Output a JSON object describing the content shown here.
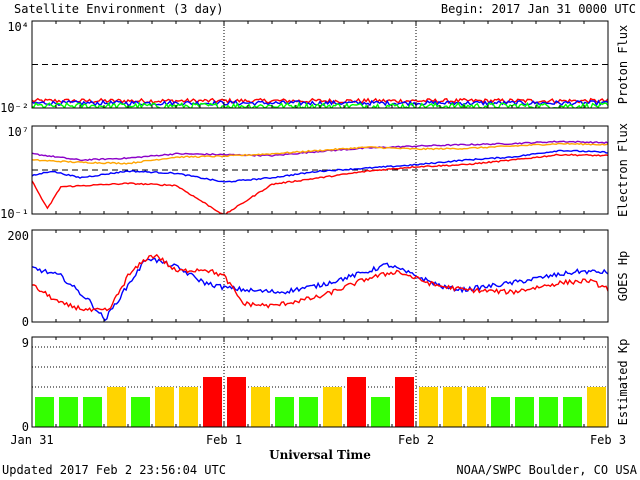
{
  "header": {
    "title": "Satellite Environment (3 day)",
    "begin": "Begin:  2017 Jan 31 0000 UTC"
  },
  "footer": {
    "updated": "Updated 2017 Feb  2 23:56:04 UTC",
    "credit": "NOAA/SWPC Boulder, CO USA"
  },
  "x_axis": {
    "label": "Universal Time",
    "ticks": [
      "Jan 31",
      "Feb 1",
      "Feb 2",
      "Feb 3"
    ]
  },
  "colors": {
    "red": "#ff0000",
    "blue": "#0000ff",
    "green": "#00ff00",
    "orange": "#ffa500",
    "purple": "#8b00c8",
    "yellow": "#ffd700",
    "kp_green": "#33ff00",
    "kp_yellow": "#ffd400",
    "kp_red": "#ff0000"
  },
  "chart_data": [
    {
      "type": "line",
      "panel": "proton",
      "ylabel": "Proton Flux",
      "y_scale": "log",
      "ylim": [
        0.01,
        10000
      ],
      "y_ticks": [
        "10⁴",
        "10⁻²"
      ],
      "threshold": 10,
      "x_days": [
        0,
        3
      ],
      "series": [
        {
          "color": "red",
          "base": 0.031,
          "jitter": 0.15
        },
        {
          "color": "blue",
          "base": 0.022,
          "jitter": 0.15
        },
        {
          "color": "green",
          "base": 0.014,
          "jitter": 0.2
        }
      ]
    },
    {
      "type": "line",
      "panel": "electron",
      "ylabel": "Electron Flux",
      "y_scale": "log",
      "ylim": [
        0.1,
        10000000
      ],
      "y_ticks": [
        "10⁷",
        "10⁻¹"
      ],
      "threshold": 1000,
      "x_days": [
        0,
        3
      ],
      "series": [
        {
          "color": "purple",
          "points": [
            [
              0,
              30000
            ],
            [
              0.25,
              8000
            ],
            [
              0.5,
              12000
            ],
            [
              0.75,
              30000
            ],
            [
              1,
              25000
            ],
            [
              1.25,
              20000
            ],
            [
              1.5,
              50000
            ],
            [
              1.75,
              100000
            ],
            [
              2,
              150000
            ],
            [
              2.25,
              200000
            ],
            [
              2.5,
              250000
            ],
            [
              2.75,
              400000
            ],
            [
              3,
              300000
            ]
          ]
        },
        {
          "color": "orange",
          "points": [
            [
              0,
              8000
            ],
            [
              0.25,
              5000
            ],
            [
              0.5,
              4000
            ],
            [
              0.75,
              15000
            ],
            [
              1,
              18000
            ],
            [
              1.25,
              30000
            ],
            [
              1.5,
              60000
            ],
            [
              1.75,
              120000
            ],
            [
              2,
              80000
            ],
            [
              2.25,
              90000
            ],
            [
              2.5,
              150000
            ],
            [
              2.75,
              250000
            ],
            [
              3,
              200000
            ]
          ]
        },
        {
          "color": "blue",
          "points": [
            [
              0,
              300
            ],
            [
              0.1,
              800
            ],
            [
              0.25,
              200
            ],
            [
              0.5,
              800
            ],
            [
              0.75,
              500
            ],
            [
              1,
              80
            ],
            [
              1.25,
              200
            ],
            [
              1.5,
              800
            ],
            [
              1.75,
              1500
            ],
            [
              2,
              3000
            ],
            [
              2.25,
              8000
            ],
            [
              2.5,
              15000
            ],
            [
              2.75,
              60000
            ],
            [
              3,
              40000
            ]
          ]
        },
        {
          "color": "red",
          "points": [
            [
              0,
              100
            ],
            [
              0.08,
              0.3
            ],
            [
              0.15,
              30
            ],
            [
              0.5,
              60
            ],
            [
              0.75,
              40
            ],
            [
              1,
              0.08
            ],
            [
              1.25,
              50
            ],
            [
              1.5,
              200
            ],
            [
              1.75,
              800
            ],
            [
              2,
              2000
            ],
            [
              2.25,
              3000
            ],
            [
              2.5,
              8000
            ],
            [
              2.75,
              25000
            ],
            [
              3,
              20000
            ]
          ]
        }
      ]
    },
    {
      "type": "line",
      "panel": "goes_hp",
      "ylabel": "GOES Hp",
      "y_scale": "linear",
      "ylim": [
        0,
        200
      ],
      "y_ticks": [
        "200",
        "0"
      ],
      "x_days": [
        0,
        3
      ],
      "series": [
        {
          "color": "blue",
          "points": [
            [
              0,
              118
            ],
            [
              0.15,
              100
            ],
            [
              0.3,
              45
            ],
            [
              0.38,
              5
            ],
            [
              0.5,
              80
            ],
            [
              0.6,
              140
            ],
            [
              0.75,
              120
            ],
            [
              0.9,
              85
            ],
            [
              1.0,
              75
            ],
            [
              1.15,
              68
            ],
            [
              1.3,
              65
            ],
            [
              1.5,
              80
            ],
            [
              1.75,
              110
            ],
            [
              1.85,
              125
            ],
            [
              2.0,
              100
            ],
            [
              2.15,
              75
            ],
            [
              2.25,
              70
            ],
            [
              2.5,
              85
            ],
            [
              2.7,
              100
            ],
            [
              2.85,
              110
            ],
            [
              3.0,
              108
            ]
          ]
        },
        {
          "color": "red",
          "points": [
            [
              0,
              80
            ],
            [
              0.15,
              40
            ],
            [
              0.3,
              25
            ],
            [
              0.4,
              25
            ],
            [
              0.5,
              100
            ],
            [
              0.6,
              140
            ],
            [
              0.65,
              145
            ],
            [
              0.75,
              110
            ],
            [
              0.9,
              115
            ],
            [
              1.0,
              100
            ],
            [
              1.1,
              40
            ],
            [
              1.25,
              35
            ],
            [
              1.5,
              55
            ],
            [
              1.75,
              95
            ],
            [
              1.9,
              110
            ],
            [
              2.0,
              95
            ],
            [
              2.1,
              80
            ],
            [
              2.25,
              70
            ],
            [
              2.5,
              65
            ],
            [
              2.75,
              85
            ],
            [
              2.9,
              90
            ],
            [
              3.0,
              72
            ]
          ]
        }
      ]
    },
    {
      "type": "bar",
      "panel": "kp",
      "ylabel": "Estimated Kp",
      "ylim": [
        0,
        9
      ],
      "y_ticks": [
        "9",
        "0"
      ],
      "bar_width_hours": 3,
      "values": [
        3,
        3,
        3,
        4,
        3,
        4,
        4,
        5,
        5,
        4,
        3,
        3,
        4,
        5,
        3,
        5,
        4,
        4,
        4,
        3,
        3,
        3,
        3,
        4
      ],
      "colors": [
        "kp_green",
        "kp_green",
        "kp_green",
        "kp_yellow",
        "kp_green",
        "kp_yellow",
        "kp_yellow",
        "kp_red",
        "kp_red",
        "kp_yellow",
        "kp_green",
        "kp_green",
        "kp_yellow",
        "kp_red",
        "kp_green",
        "kp_red",
        "kp_yellow",
        "kp_yellow",
        "kp_yellow",
        "kp_green",
        "kp_green",
        "kp_green",
        "kp_green",
        "kp_yellow"
      ]
    }
  ]
}
